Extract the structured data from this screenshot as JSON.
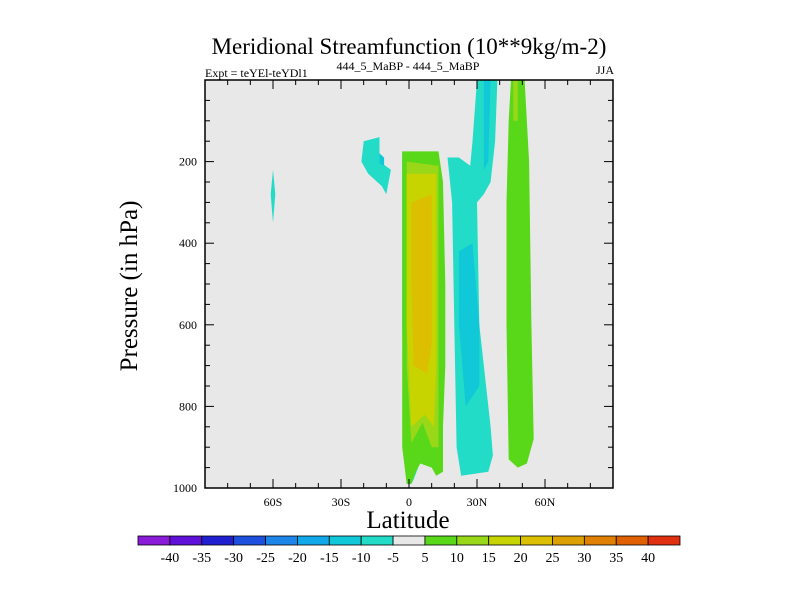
{
  "chart_data": {
    "type": "heatmap",
    "title": "Meridional Streamfunction (10**9kg/m-2)",
    "subtitle_left": "Expt = teYEl-teYDl1",
    "subtitle_center": "444_5_MaBP - 444_5_MaBP",
    "subtitle_right": "JJA",
    "xlabel": "Latitude",
    "ylabel": "Pressure (in hPa)",
    "xlim": [
      -90,
      90
    ],
    "ylim": [
      1000,
      0
    ],
    "y_inverted": true,
    "x_ticks": [
      {
        "value": -60,
        "label": "60S"
      },
      {
        "value": -30,
        "label": "30S"
      },
      {
        "value": 0,
        "label": "0"
      },
      {
        "value": 30,
        "label": "30N"
      },
      {
        "value": 60,
        "label": "60N"
      }
    ],
    "y_ticks": [
      {
        "value": 200,
        "label": "200"
      },
      {
        "value": 400,
        "label": "400"
      },
      {
        "value": 600,
        "label": "600"
      },
      {
        "value": 800,
        "label": "800"
      },
      {
        "value": 1000,
        "label": "1000"
      }
    ],
    "background_color": "#e8e8e8",
    "colorbar": {
      "labels": [
        "-40",
        "-35",
        "-30",
        "-25",
        "-20",
        "-15",
        "-10",
        "-5",
        "5",
        "10",
        "15",
        "20",
        "25",
        "30",
        "35",
        "40"
      ],
      "colors": [
        "#8a1cd9",
        "#6010d9",
        "#2020d0",
        "#1e50e0",
        "#1e86e8",
        "#10a8e8",
        "#10c8d8",
        "#22dcc8",
        "#e8e8e8",
        "#58d818",
        "#98d818",
        "#c8d400",
        "#dcc000",
        "#dca000",
        "#e08000",
        "#e06000",
        "#e03010"
      ]
    },
    "regions": [
      {
        "value": -10,
        "color": "#22dcc8",
        "points": [
          [
            -3,
            180
          ],
          [
            4,
            180
          ],
          [
            6,
            300
          ],
          [
            6,
            600
          ],
          [
            6,
            890
          ],
          [
            4,
            950
          ],
          [
            2,
            980
          ],
          [
            1,
            990
          ],
          [
            -1,
            990
          ],
          [
            -2,
            930
          ],
          [
            -3,
            600
          ]
        ]
      },
      {
        "value": -10,
        "color": "#22dcc8",
        "points": [
          [
            5,
            1000
          ],
          [
            5,
            1000
          ],
          [
            5,
            1000
          ]
        ]
      },
      {
        "value": 10,
        "color": "#58d818",
        "points": [
          [
            -3,
            175
          ],
          [
            13,
            175
          ],
          [
            15,
            250
          ],
          [
            16,
            500
          ],
          [
            16,
            700
          ],
          [
            15,
            850
          ],
          [
            15,
            960
          ],
          [
            12,
            970
          ],
          [
            10,
            950
          ],
          [
            5,
            940
          ],
          [
            3,
            960
          ],
          [
            1,
            990
          ],
          [
            -1,
            990
          ],
          [
            -3,
            900
          ]
        ]
      },
      {
        "value": 15,
        "color": "#98d818",
        "points": [
          [
            -1,
            200
          ],
          [
            13,
            210
          ],
          [
            13,
            500
          ],
          [
            13,
            700
          ],
          [
            13,
            900
          ],
          [
            10,
            900
          ],
          [
            6,
            840
          ],
          [
            1,
            890
          ],
          [
            -1,
            700
          ]
        ]
      },
      {
        "value": 20,
        "color": "#c8d400",
        "points": [
          [
            -1,
            230
          ],
          [
            12,
            230
          ],
          [
            12,
            700
          ],
          [
            11,
            850
          ],
          [
            7,
            820
          ],
          [
            1,
            850
          ],
          [
            -1,
            600
          ]
        ]
      },
      {
        "value": 25,
        "color": "#dcc000",
        "points": [
          [
            1,
            300
          ],
          [
            10,
            280
          ],
          [
            10,
            650
          ],
          [
            8,
            720
          ],
          [
            2,
            700
          ],
          [
            1,
            500
          ]
        ]
      },
      {
        "value": -10,
        "color": "#22dcc8",
        "points": [
          [
            17,
            190
          ],
          [
            22,
            190
          ],
          [
            27,
            210
          ],
          [
            28,
            150
          ],
          [
            30,
            0
          ],
          [
            39,
            0
          ],
          [
            38,
            150
          ],
          [
            36,
            250
          ],
          [
            33,
            280
          ],
          [
            30,
            300
          ],
          [
            31,
            600
          ],
          [
            36,
            850
          ],
          [
            37,
            920
          ],
          [
            35,
            960
          ],
          [
            23,
            970
          ],
          [
            21,
            900
          ],
          [
            20,
            600
          ],
          [
            19,
            300
          ]
        ]
      },
      {
        "value": -15,
        "color": "#10c8d8",
        "points": [
          [
            22,
            420
          ],
          [
            28,
            400
          ],
          [
            31,
            600
          ],
          [
            31,
            750
          ],
          [
            25,
            800
          ],
          [
            22,
            600
          ]
        ]
      },
      {
        "value": -15,
        "color": "#10c8d8",
        "points": [
          [
            33,
            0
          ],
          [
            36,
            0
          ],
          [
            35,
            200
          ],
          [
            33,
            220
          ]
        ]
      },
      {
        "value": 10,
        "color": "#58d818",
        "points": [
          [
            45,
            0
          ],
          [
            51,
            0
          ],
          [
            53,
            200
          ],
          [
            54,
            600
          ],
          [
            55,
            880
          ],
          [
            52,
            940
          ],
          [
            48,
            950
          ],
          [
            44,
            930
          ],
          [
            43,
            600
          ],
          [
            43,
            300
          ],
          [
            44,
            100
          ]
        ]
      },
      {
        "value": 15,
        "color": "#98d818",
        "points": [
          [
            46,
            0
          ],
          [
            48,
            0
          ],
          [
            48,
            100
          ],
          [
            46,
            100
          ]
        ]
      },
      {
        "value": -10,
        "color": "#22dcc8",
        "points": [
          [
            -20,
            150
          ],
          [
            -13,
            140
          ],
          [
            -13,
            200
          ],
          [
            -8,
            220
          ],
          [
            -10,
            280
          ],
          [
            -12,
            260
          ],
          [
            -18,
            230
          ],
          [
            -21,
            200
          ]
        ]
      },
      {
        "value": -15,
        "color": "#10c8d8",
        "points": [
          [
            -13,
            180
          ],
          [
            -11,
            190
          ],
          [
            -11,
            210
          ],
          [
            -13,
            205
          ]
        ]
      },
      {
        "value": -10,
        "color": "#22dcc8",
        "points": [
          [
            -60,
            220
          ],
          [
            -59,
            280
          ],
          [
            -60,
            350
          ],
          [
            -61,
            280
          ]
        ]
      }
    ]
  }
}
